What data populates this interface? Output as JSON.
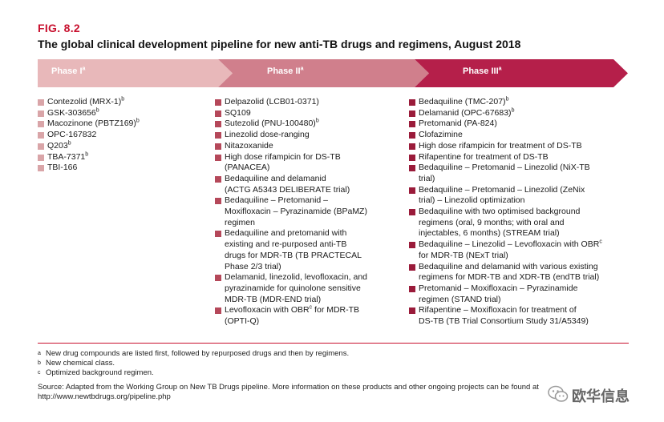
{
  "figure": {
    "label": "FIG. 8.2",
    "title": "The global clinical development pipeline for new anti-TB drugs and regimens, August 2018"
  },
  "phases": [
    {
      "label": "Phase I",
      "sup": "a",
      "color": "#e8b8ba"
    },
    {
      "label": "Phase II",
      "sup": "a",
      "color": "#d07f8c"
    },
    {
      "label": "Phase III",
      "sup": "a",
      "color": "#b51f4a"
    }
  ],
  "columns": [
    {
      "items": [
        {
          "lines": [
            {
              "t": "Contezolid (MRX-1)",
              "s": "b"
            }
          ]
        },
        {
          "lines": [
            {
              "t": "GSK-303656",
              "s": "b"
            }
          ]
        },
        {
          "lines": [
            {
              "t": "Macozinone (PBTZ169)",
              "s": "b"
            }
          ]
        },
        {
          "lines": [
            {
              "t": "OPC-167832"
            }
          ]
        },
        {
          "lines": [
            {
              "t": "Q203",
              "s": "b"
            }
          ]
        },
        {
          "lines": [
            {
              "t": "TBA-7371",
              "s": "b"
            }
          ]
        },
        {
          "lines": [
            {
              "t": "TBI-166"
            }
          ]
        }
      ]
    },
    {
      "items": [
        {
          "lines": [
            {
              "t": "Delpazolid (LCB01-0371)"
            }
          ]
        },
        {
          "lines": [
            {
              "t": "SQ109"
            }
          ]
        },
        {
          "lines": [
            {
              "t": "Sutezolid (PNU-100480)",
              "s": "b"
            }
          ]
        },
        {
          "lines": [
            {
              "t": "Linezolid dose-ranging"
            }
          ]
        },
        {
          "lines": [
            {
              "t": "Nitazoxanide"
            }
          ]
        },
        {
          "lines": [
            {
              "t": "High dose rifampicin for DS-TB"
            },
            {
              "t": "(PANACEA)"
            }
          ]
        },
        {
          "lines": [
            {
              "t": "Bedaquiline and delamanid"
            },
            {
              "t": "(ACTG A5343 DELIBERATE trial)"
            }
          ]
        },
        {
          "lines": [
            {
              "t": "Bedaquiline – Pretomanid –"
            },
            {
              "t": "Moxifloxacin – Pyrazinamide (BPaMZ)"
            },
            {
              "t": "regimen"
            }
          ]
        },
        {
          "lines": [
            {
              "t": "Bedaquiline and pretomanid with"
            },
            {
              "t": "existing and re-purposed anti-TB"
            },
            {
              "t": "drugs for MDR-TB (TB PRACTECAL"
            },
            {
              "t": "Phase 2/3 trial)"
            }
          ]
        },
        {
          "lines": [
            {
              "t": "Delamanid, linezolid, levofloxacin, and"
            },
            {
              "t": "pyrazinamide for quinolone sensitive"
            },
            {
              "t": "MDR-TB (MDR-END trial)"
            }
          ]
        },
        {
          "lines": [
            {
              "t": "Levofloxacin with OBR",
              "s": "c",
              "t2": " for MDR-TB"
            },
            {
              "t": "(OPTI-Q)"
            }
          ]
        }
      ]
    },
    {
      "items": [
        {
          "lines": [
            {
              "t": "Bedaquiline (TMC-207)",
              "s": "b"
            }
          ]
        },
        {
          "lines": [
            {
              "t": "Delamanid (OPC-67683)",
              "s": "b"
            }
          ]
        },
        {
          "lines": [
            {
              "t": "Pretomanid (PA-824)"
            }
          ]
        },
        {
          "lines": [
            {
              "t": "Clofazimine"
            }
          ]
        },
        {
          "lines": [
            {
              "t": "High dose rifampicin for treatment of DS-TB"
            }
          ]
        },
        {
          "lines": [
            {
              "t": "Rifapentine for treatment of DS-TB"
            }
          ]
        },
        {
          "lines": [
            {
              "t": "Bedaquiline – Pretomanid – Linezolid (NiX-TB"
            },
            {
              "t": "trial)"
            }
          ]
        },
        {
          "lines": [
            {
              "t": "Bedaquiline – Pretomanid – Linezolid (ZeNix"
            },
            {
              "t": "trial) – Linezolid optimization"
            }
          ]
        },
        {
          "lines": [
            {
              "t": "Bedaquiline with two optimised background"
            },
            {
              "t": "regimens (oral, 9 months; with oral and"
            },
            {
              "t": "injectables, 6 months) (STREAM trial)"
            }
          ]
        },
        {
          "lines": [
            {
              "t": "Bedaquiline – Linezolid – Levofloxacin with OBR",
              "s": "c"
            },
            {
              "t": "for MDR-TB (NExT trial)"
            }
          ]
        },
        {
          "lines": [
            {
              "t": "Bedaquiline and delamanid with various existing"
            },
            {
              "t": "regimens for MDR-TB and XDR-TB (endTB trial)"
            }
          ]
        },
        {
          "lines": [
            {
              "t": "Pretomanid – Moxifloxacin – Pyrazinamide"
            },
            {
              "t": "regimen (STAND trial)"
            }
          ]
        },
        {
          "lines": [
            {
              "t": "Rifapentine – Moxifloxacin for treatment of"
            },
            {
              "t": "DS-TB (TB Trial Consortium Study 31/A5349)"
            }
          ]
        }
      ]
    }
  ],
  "footnotes": [
    {
      "mark": "a",
      "text": "New drug compounds are listed first, followed by repurposed drugs and then by regimens."
    },
    {
      "mark": "b",
      "text": "New chemical class."
    },
    {
      "mark": "c",
      "text": "Optimized background regimen."
    }
  ],
  "source": {
    "line1": "Source: Adapted from the Working Group on New TB Drugs pipeline. More information on these products and other ongoing projects can be found at",
    "line2": "http://www.newtbdrugs.org/pipeline.php"
  },
  "watermark": {
    "text": "欧华信息",
    "icon": "wechat-icon"
  }
}
